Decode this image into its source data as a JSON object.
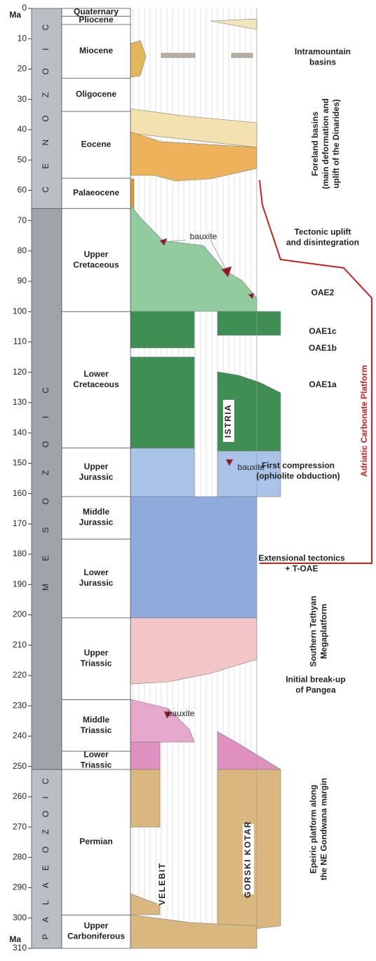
{
  "axis": {
    "unit_label": "Ma",
    "ticks": [
      0,
      10,
      20,
      30,
      40,
      50,
      60,
      70,
      80,
      90,
      100,
      110,
      120,
      130,
      140,
      150,
      160,
      170,
      180,
      190,
      200,
      210,
      220,
      230,
      240,
      250,
      260,
      270,
      280,
      290,
      300,
      310
    ]
  },
  "eras": [
    {
      "name": "CENOZOIC",
      "from": 0,
      "to": 66
    },
    {
      "name": "MESOZOIC",
      "from": 66,
      "to": 251
    },
    {
      "name": "PALAEOZOIC",
      "from": 251,
      "to": 310
    }
  ],
  "periods": [
    {
      "lines": [
        "Quaternary"
      ],
      "from": 0,
      "to": 2.6
    },
    {
      "lines": [
        "Pliocene"
      ],
      "from": 2.6,
      "to": 5.3
    },
    {
      "lines": [
        "Miocene"
      ],
      "from": 5.3,
      "to": 23
    },
    {
      "lines": [
        "Oligocene"
      ],
      "from": 23,
      "to": 34
    },
    {
      "lines": [
        "Eocene"
      ],
      "from": 34,
      "to": 56
    },
    {
      "lines": [
        "Palaeocene"
      ],
      "from": 56,
      "to": 66
    },
    {
      "lines": [
        "Upper",
        "Cretaceous"
      ],
      "from": 66,
      "to": 100
    },
    {
      "lines": [
        "Lower",
        "Cretaceous"
      ],
      "from": 100,
      "to": 145
    },
    {
      "lines": [
        "Upper",
        "Jurassic"
      ],
      "from": 145,
      "to": 161
    },
    {
      "lines": [
        "Middle",
        "Jurassic"
      ],
      "from": 161,
      "to": 175
    },
    {
      "lines": [
        "Lower",
        "Jurassic"
      ],
      "from": 175,
      "to": 201
    },
    {
      "lines": [
        "Upper",
        "Triassic"
      ],
      "from": 201,
      "to": 228
    },
    {
      "lines": [
        "Middle",
        "Triassic"
      ],
      "from": 228,
      "to": 245
    },
    {
      "lines": [
        "Lower",
        "Triassic"
      ],
      "from": 245,
      "to": 251
    },
    {
      "lines": [
        "Permian"
      ],
      "from": 251,
      "to": 299
    },
    {
      "lines": [
        "Upper",
        "Carboniferous"
      ],
      "from": 299,
      "to": 310
    }
  ],
  "annotations": [
    {
      "lines": [
        "Intramountain",
        "basins"
      ]
    },
    {
      "lines": [
        "Foreland basins",
        "(main deformation and",
        "uplift of the Dinarides)"
      ]
    },
    {
      "lines": [
        "Tectonic uplift",
        "and disintegration"
      ]
    },
    {
      "lines": [
        "OAE2"
      ]
    },
    {
      "lines": [
        "OAE1c"
      ]
    },
    {
      "lines": [
        "OAE1b"
      ]
    },
    {
      "lines": [
        "OAE1a"
      ]
    },
    {
      "lines": [
        "First compression",
        "(ophiolite obduction)"
      ]
    },
    {
      "lines": [
        "Extensional tectonics",
        "+ T-OAE"
      ]
    },
    {
      "lines": [
        "Southern Tethyan",
        "Megaplatform"
      ]
    },
    {
      "lines": [
        "Initial break-up",
        "of Pangea"
      ]
    },
    {
      "lines": [
        "Epeiric platform along",
        "the NE Gondwana margin"
      ]
    }
  ],
  "platform_label": "Adriatic Carbonate Platform",
  "bauxite_labels": [
    "bauxite",
    "bauxite",
    "bauxite"
  ],
  "sections": [
    "ISTRIA",
    "VELEBIT",
    "GORSKI KOTAR"
  ]
}
